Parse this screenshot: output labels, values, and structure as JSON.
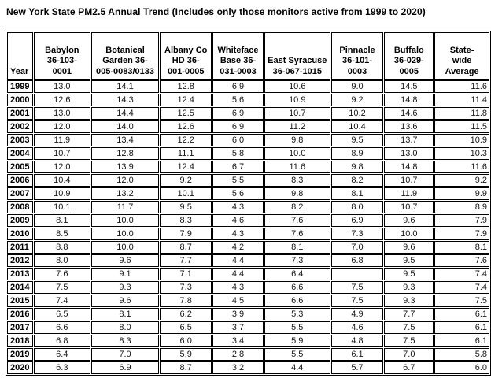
{
  "title": "New York State PM2.5 Annual Trend (Includes only those monitors active from 1999 to 2020)",
  "table": {
    "columns": [
      {
        "label": "Year"
      },
      {
        "label": "Babylon\n36-103-\n0001"
      },
      {
        "label": "Botanical\nGarden 36-\n005-0083/0133"
      },
      {
        "label": "Albany Co\nHD  36-\n001-0005"
      },
      {
        "label": "Whiteface\nBase  36-\n031-0003"
      },
      {
        "label": "East Syracuse\n36-067-1015"
      },
      {
        "label": "Pinnacle\n36-101-\n0003"
      },
      {
        "label": "Buffalo\n36-029-\n0005"
      },
      {
        "label": "State-\nwide\nAverage"
      }
    ],
    "rows": [
      {
        "year": "1999",
        "values": [
          "13.0",
          "14.1",
          "12.8",
          "6.9",
          "10.6",
          "9.0",
          "14.5",
          "11.6"
        ]
      },
      {
        "year": "2000",
        "values": [
          "12.6",
          "14.3",
          "12.4",
          "5.6",
          "10.9",
          "9.2",
          "14.8",
          "11.4"
        ]
      },
      {
        "year": "2001",
        "values": [
          "13.0",
          "14.4",
          "12.5",
          "6.9",
          "10.7",
          "10.2",
          "14.6",
          "11.8"
        ]
      },
      {
        "year": "2002",
        "values": [
          "12.0",
          "14.0",
          "12.6",
          "6.9",
          "11.2",
          "10.4",
          "13.6",
          "11.5"
        ]
      },
      {
        "year": "2003",
        "values": [
          "11.9",
          "13.4",
          "12.2",
          "6.0",
          "9.8",
          "9.5",
          "13.7",
          "10.9"
        ]
      },
      {
        "year": "2004",
        "values": [
          "10.7",
          "12.8",
          "11.1",
          "5.8",
          "10.0",
          "8.9",
          "13.0",
          "10.3"
        ]
      },
      {
        "year": "2005",
        "values": [
          "12.0",
          "13.9",
          "12.4",
          "6.7",
          "11.6",
          "9.8",
          "14.8",
          "11.6"
        ]
      },
      {
        "year": "2006",
        "values": [
          "10.4",
          "12.0",
          "9.2",
          "5.5",
          "8.3",
          "8.2",
          "10.7",
          "9.2"
        ]
      },
      {
        "year": "2007",
        "values": [
          "10.9",
          "13.2",
          "10.1",
          "5.6",
          "9.8",
          "8.1",
          "11.9",
          "9.9"
        ]
      },
      {
        "year": "2008",
        "values": [
          "10.1",
          "11.7",
          "9.5",
          "4.3",
          "8.2",
          "8.0",
          "10.7",
          "8.9"
        ]
      },
      {
        "year": "2009",
        "values": [
          "8.1",
          "10.0",
          "8.3",
          "4.6",
          "7.6",
          "6.9",
          "9.6",
          "7.9"
        ]
      },
      {
        "year": "2010",
        "values": [
          "8.5",
          "10.0",
          "7.9",
          "4.3",
          "7.6",
          "7.3",
          "10.0",
          "7.9"
        ]
      },
      {
        "year": "2011",
        "values": [
          "8.8",
          "10.0",
          "8.7",
          "4.2",
          "8.1",
          "7.0",
          "9.6",
          "8.1"
        ]
      },
      {
        "year": "2012",
        "values": [
          "8.0",
          "9.6",
          "7.7",
          "4.4",
          "7.3",
          "6.8",
          "9.5",
          "7.6"
        ]
      },
      {
        "year": "2013",
        "values": [
          "7.6",
          "9.1",
          "7.1",
          "4.4",
          "6.4",
          "",
          "9.5",
          "7.4"
        ]
      },
      {
        "year": "2014",
        "values": [
          "7.5",
          "9.3",
          "7.3",
          "4.3",
          "6.6",
          "7.5",
          "9.3",
          "7.4"
        ]
      },
      {
        "year": "2015",
        "values": [
          "7.4",
          "9.6",
          "7.8",
          "4.5",
          "6.6",
          "7.5",
          "9.3",
          "7.5"
        ]
      },
      {
        "year": "2016",
        "values": [
          "6.5",
          "8.1",
          "6.2",
          "3.9",
          "5.3",
          "4.9",
          "7.7",
          "6.1"
        ]
      },
      {
        "year": "2017",
        "values": [
          "6.6",
          "8.0",
          "6.5",
          "3.7",
          "5.5",
          "4.6",
          "7.5",
          "6.1"
        ]
      },
      {
        "year": "2018",
        "values": [
          "6.8",
          "8.3",
          "6.0",
          "3.4",
          "5.9",
          "4.8",
          "7.5",
          "6.1"
        ]
      },
      {
        "year": "2019",
        "values": [
          "6.4",
          "7.0",
          "5.9",
          "2.8",
          "5.5",
          "6.1",
          "7.0",
          "5.8"
        ]
      },
      {
        "year": "2020",
        "values": [
          "6.3",
          "6.9",
          "8.7",
          "3.2",
          "4.4",
          "5.7",
          "6.7",
          "6.0"
        ]
      }
    ]
  }
}
